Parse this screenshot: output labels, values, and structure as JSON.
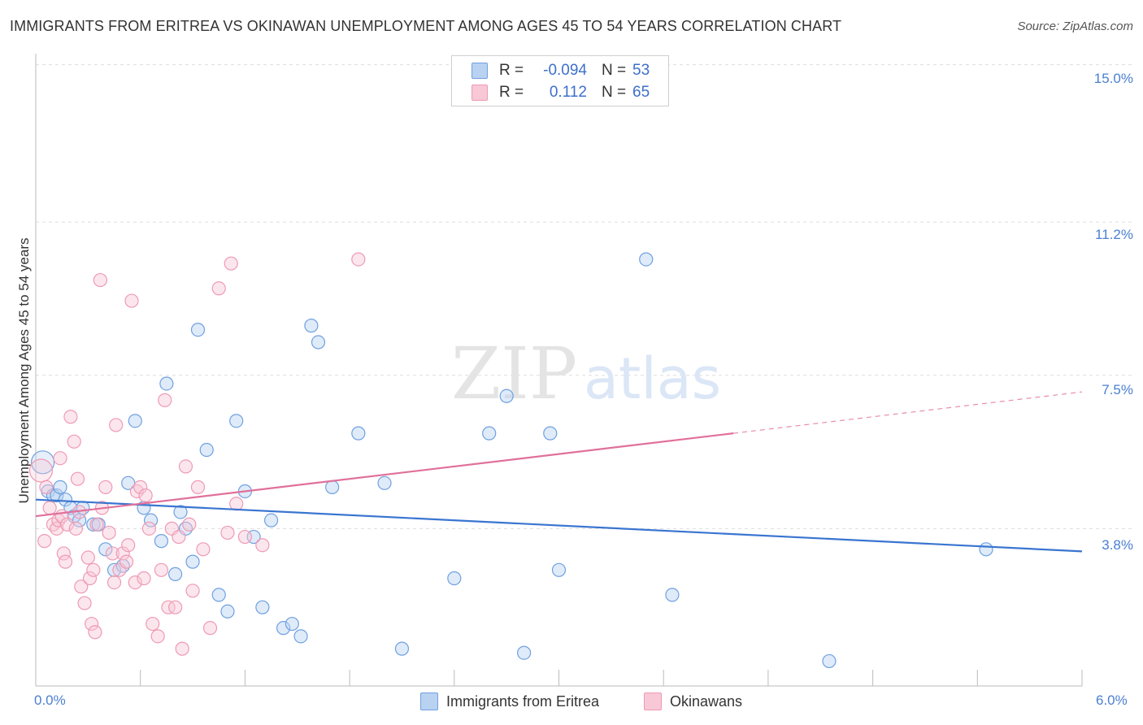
{
  "chart_data": {
    "type": "scatter",
    "title": "IMMIGRANTS FROM ERITREA VS OKINAWAN UNEMPLOYMENT AMONG AGES 45 TO 54 YEARS CORRELATION CHART",
    "source": "Source: ZipAtlas.com",
    "xlabel": "",
    "ylabel": "Unemployment Among Ages 45 to 54 years",
    "xlim": [
      0,
      6.0
    ],
    "ylim": [
      0,
      15.6
    ],
    "x_tick_labels": [
      "0.0%",
      "6.0%"
    ],
    "y_ticks": [
      {
        "value": 3.8,
        "label": "3.8%"
      },
      {
        "value": 7.5,
        "label": "7.5%"
      },
      {
        "value": 11.2,
        "label": "11.2%"
      },
      {
        "value": 15.0,
        "label": "15.0%"
      }
    ],
    "grid": true,
    "watermark": "ZIPatlas",
    "legend_stats": [
      {
        "r_label": "R =",
        "r_value": "-0.094",
        "n_label": "N =",
        "n_value": "53"
      },
      {
        "r_label": "R =",
        "r_value": "0.112",
        "n_label": "N =",
        "n_value": "65"
      }
    ],
    "series": [
      {
        "name": "Immigrants from Eritrea",
        "color": "#6fa0e0",
        "fill": "#b9d2f1",
        "line_color": "#3a75d0",
        "trend": {
          "x0": 0.0,
          "y0": 4.5,
          "x1": 6.0,
          "y1": 3.25
        },
        "points": [
          [
            0.04,
            5.4
          ],
          [
            0.07,
            4.7
          ],
          [
            0.1,
            4.6
          ],
          [
            0.12,
            4.6
          ],
          [
            0.14,
            4.8
          ],
          [
            0.17,
            4.5
          ],
          [
            0.2,
            4.3
          ],
          [
            0.22,
            4.1
          ],
          [
            0.25,
            4.0
          ],
          [
            0.27,
            4.3
          ],
          [
            0.33,
            3.9
          ],
          [
            0.36,
            3.9
          ],
          [
            0.4,
            3.3
          ],
          [
            0.45,
            2.8
          ],
          [
            0.5,
            2.9
          ],
          [
            0.53,
            4.9
          ],
          [
            0.57,
            6.4
          ],
          [
            0.62,
            4.3
          ],
          [
            0.66,
            4.0
          ],
          [
            0.72,
            3.5
          ],
          [
            0.75,
            7.3
          ],
          [
            0.8,
            2.7
          ],
          [
            0.83,
            4.2
          ],
          [
            0.86,
            3.8
          ],
          [
            0.9,
            3.0
          ],
          [
            0.93,
            8.6
          ],
          [
            0.98,
            5.7
          ],
          [
            1.05,
            2.2
          ],
          [
            1.1,
            1.8
          ],
          [
            1.15,
            6.4
          ],
          [
            1.2,
            4.7
          ],
          [
            1.25,
            3.6
          ],
          [
            1.3,
            1.9
          ],
          [
            1.35,
            4.0
          ],
          [
            1.42,
            1.4
          ],
          [
            1.47,
            1.5
          ],
          [
            1.52,
            1.2
          ],
          [
            1.58,
            8.7
          ],
          [
            1.62,
            8.3
          ],
          [
            1.7,
            4.8
          ],
          [
            1.85,
            6.1
          ],
          [
            2.0,
            4.9
          ],
          [
            2.1,
            0.9
          ],
          [
            2.4,
            2.6
          ],
          [
            2.6,
            6.1
          ],
          [
            2.7,
            7.0
          ],
          [
            2.8,
            0.8
          ],
          [
            2.95,
            6.1
          ],
          [
            3.0,
            2.8
          ],
          [
            3.5,
            10.3
          ],
          [
            3.65,
            2.2
          ],
          [
            4.55,
            0.6
          ],
          [
            5.45,
            3.3
          ]
        ]
      },
      {
        "name": "Okinawans",
        "color": "#ee9ab4",
        "fill": "#f8c8d6",
        "line_color": "#e0709a",
        "trend": {
          "x0": 0.0,
          "y0": 4.1,
          "x1": 4.0,
          "y1": 6.1
        },
        "trend_dashed": {
          "x0": 4.0,
          "y0": 6.1,
          "x1": 6.0,
          "y1": 7.1
        },
        "points": [
          [
            0.03,
            5.2
          ],
          [
            0.05,
            3.5
          ],
          [
            0.06,
            4.8
          ],
          [
            0.08,
            4.3
          ],
          [
            0.1,
            3.9
          ],
          [
            0.12,
            3.8
          ],
          [
            0.13,
            4.0
          ],
          [
            0.14,
            5.5
          ],
          [
            0.15,
            4.1
          ],
          [
            0.16,
            3.2
          ],
          [
            0.17,
            3.0
          ],
          [
            0.18,
            3.9
          ],
          [
            0.2,
            6.5
          ],
          [
            0.22,
            5.9
          ],
          [
            0.23,
            3.8
          ],
          [
            0.24,
            5.0
          ],
          [
            0.25,
            4.2
          ],
          [
            0.26,
            2.4
          ],
          [
            0.28,
            2.0
          ],
          [
            0.3,
            3.1
          ],
          [
            0.31,
            2.6
          ],
          [
            0.32,
            1.5
          ],
          [
            0.33,
            2.8
          ],
          [
            0.34,
            1.3
          ],
          [
            0.35,
            3.9
          ],
          [
            0.37,
            9.8
          ],
          [
            0.38,
            4.3
          ],
          [
            0.4,
            4.8
          ],
          [
            0.42,
            3.7
          ],
          [
            0.44,
            3.2
          ],
          [
            0.45,
            2.5
          ],
          [
            0.46,
            6.3
          ],
          [
            0.48,
            2.8
          ],
          [
            0.5,
            3.2
          ],
          [
            0.52,
            3.0
          ],
          [
            0.53,
            3.4
          ],
          [
            0.55,
            9.3
          ],
          [
            0.57,
            2.5
          ],
          [
            0.58,
            4.7
          ],
          [
            0.6,
            4.8
          ],
          [
            0.62,
            2.6
          ],
          [
            0.63,
            4.6
          ],
          [
            0.65,
            3.8
          ],
          [
            0.67,
            1.5
          ],
          [
            0.7,
            1.2
          ],
          [
            0.72,
            2.8
          ],
          [
            0.74,
            6.9
          ],
          [
            0.76,
            1.9
          ],
          [
            0.78,
            3.8
          ],
          [
            0.8,
            1.9
          ],
          [
            0.82,
            3.6
          ],
          [
            0.84,
            0.9
          ],
          [
            0.86,
            5.3
          ],
          [
            0.88,
            3.9
          ],
          [
            0.9,
            2.3
          ],
          [
            0.93,
            4.8
          ],
          [
            0.96,
            3.3
          ],
          [
            1.0,
            1.4
          ],
          [
            1.05,
            9.6
          ],
          [
            1.1,
            3.7
          ],
          [
            1.12,
            10.2
          ],
          [
            1.15,
            4.4
          ],
          [
            1.2,
            3.6
          ],
          [
            1.3,
            3.4
          ],
          [
            1.85,
            10.3
          ]
        ]
      }
    ]
  }
}
